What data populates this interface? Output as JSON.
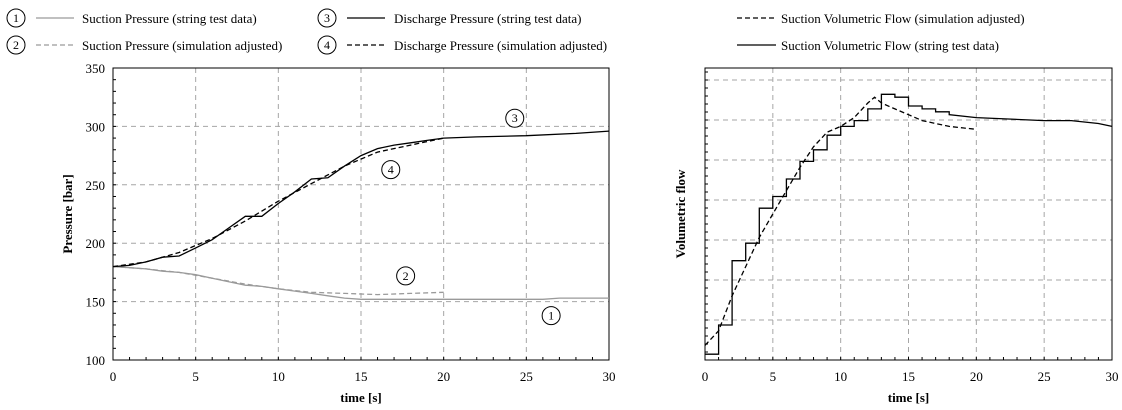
{
  "chart_data": [
    {
      "type": "line",
      "xlabel": "time [s]",
      "ylabel": "Pressure [bar]",
      "xlim": [
        0,
        30
      ],
      "ylim": [
        100,
        350
      ],
      "xticks": [
        "0",
        "5",
        "10",
        "15",
        "20",
        "25",
        "30"
      ],
      "yticks": [
        "100",
        "150",
        "200",
        "250",
        "300",
        "350"
      ],
      "grid": true,
      "legend_position": "top",
      "series": [
        {
          "marker": "1",
          "name": "Suction Pressure (string test data)",
          "color": "#9a9a9a",
          "style": "solid",
          "x": [
            0,
            1,
            2,
            3,
            4,
            5,
            6,
            7,
            8,
            9,
            10,
            11,
            12,
            13,
            14,
            15,
            16,
            17,
            18,
            19,
            20,
            22,
            24,
            26,
            27,
            28,
            30
          ],
          "y": [
            180,
            179,
            178,
            176,
            175,
            173,
            170,
            167,
            164,
            163,
            161,
            159,
            157,
            155,
            153,
            152,
            152,
            152,
            152,
            152,
            152,
            152,
            152,
            152,
            153,
            153,
            153
          ]
        },
        {
          "marker": "2",
          "name": "Suction Pressure (simulation adjusted)",
          "color": "#9a9a9a",
          "style": "dashed",
          "x": [
            0,
            2,
            4,
            6,
            8,
            10,
            12,
            14,
            16,
            18,
            20
          ],
          "y": [
            180,
            178,
            175,
            170,
            165,
            161,
            158,
            157,
            156,
            157,
            158
          ]
        },
        {
          "marker": "3",
          "name": "Discharge Pressure (string test data)",
          "color": "#000000",
          "style": "solid",
          "x": [
            0,
            1,
            2,
            3,
            4,
            5,
            6,
            7,
            8,
            9,
            10,
            11,
            12,
            13,
            14,
            15,
            16,
            17,
            18,
            19,
            20,
            22,
            25,
            28,
            30
          ],
          "y": [
            180,
            181,
            184,
            188,
            189,
            196,
            203,
            213,
            223,
            223,
            234,
            244,
            255,
            256,
            266,
            275,
            281,
            284,
            286,
            288,
            290,
            291,
            292,
            294,
            296
          ]
        },
        {
          "marker": "4",
          "name": "Discharge Pressure (simulation adjusted)",
          "color": "#000000",
          "style": "dashed",
          "x": [
            0,
            2,
            4,
            6,
            8,
            10,
            12,
            14,
            16,
            18,
            20
          ],
          "y": [
            180,
            184,
            192,
            204,
            219,
            236,
            251,
            266,
            278,
            284,
            290
          ]
        }
      ],
      "annotations": [
        {
          "text": "1",
          "x": 26.5,
          "y": 138
        },
        {
          "text": "2",
          "x": 17.7,
          "y": 172
        },
        {
          "text": "3",
          "x": 24.3,
          "y": 307
        },
        {
          "text": "4",
          "x": 16.8,
          "y": 263
        }
      ]
    },
    {
      "type": "line",
      "xlabel": "time [s]",
      "ylabel": "Volumetric flow",
      "xlim": [
        0,
        30
      ],
      "xticks": [
        "0",
        "5",
        "10",
        "15",
        "20",
        "25",
        "30"
      ],
      "grid": true,
      "legend_position": "top",
      "series": [
        {
          "name": "Suction Volumetric Flow (simulation adjusted)",
          "color": "#000000",
          "style": "dashed",
          "x": [
            0,
            1,
            2,
            3,
            4,
            5,
            6,
            7,
            8,
            9,
            10,
            11,
            12,
            12.5,
            13,
            14,
            15,
            16,
            17,
            18,
            19,
            20
          ],
          "y": [
            0.05,
            0.1,
            0.22,
            0.32,
            0.42,
            0.5,
            0.58,
            0.66,
            0.73,
            0.78,
            0.8,
            0.83,
            0.88,
            0.9,
            0.88,
            0.86,
            0.84,
            0.82,
            0.81,
            0.8,
            0.795,
            0.79
          ]
        },
        {
          "name": "Suction Volumetric Flow (string test data)",
          "color": "#000000",
          "style": "solid",
          "x": [
            0,
            1,
            1,
            2,
            2,
            3,
            3,
            4,
            4,
            5,
            5,
            6,
            6,
            7,
            7,
            8,
            8,
            9,
            9,
            10,
            10,
            11,
            11,
            12,
            12,
            13,
            13,
            14,
            14,
            15,
            15,
            16,
            16,
            17,
            17,
            18,
            18,
            20,
            25,
            27,
            29,
            30
          ],
          "y": [
            0.02,
            0.02,
            0.12,
            0.12,
            0.34,
            0.34,
            0.4,
            0.4,
            0.52,
            0.52,
            0.56,
            0.56,
            0.62,
            0.62,
            0.68,
            0.68,
            0.72,
            0.72,
            0.77,
            0.77,
            0.8,
            0.8,
            0.82,
            0.82,
            0.86,
            0.86,
            0.91,
            0.91,
            0.9,
            0.9,
            0.87,
            0.87,
            0.86,
            0.86,
            0.85,
            0.85,
            0.84,
            0.83,
            0.82,
            0.82,
            0.81,
            0.8
          ]
        }
      ]
    }
  ]
}
